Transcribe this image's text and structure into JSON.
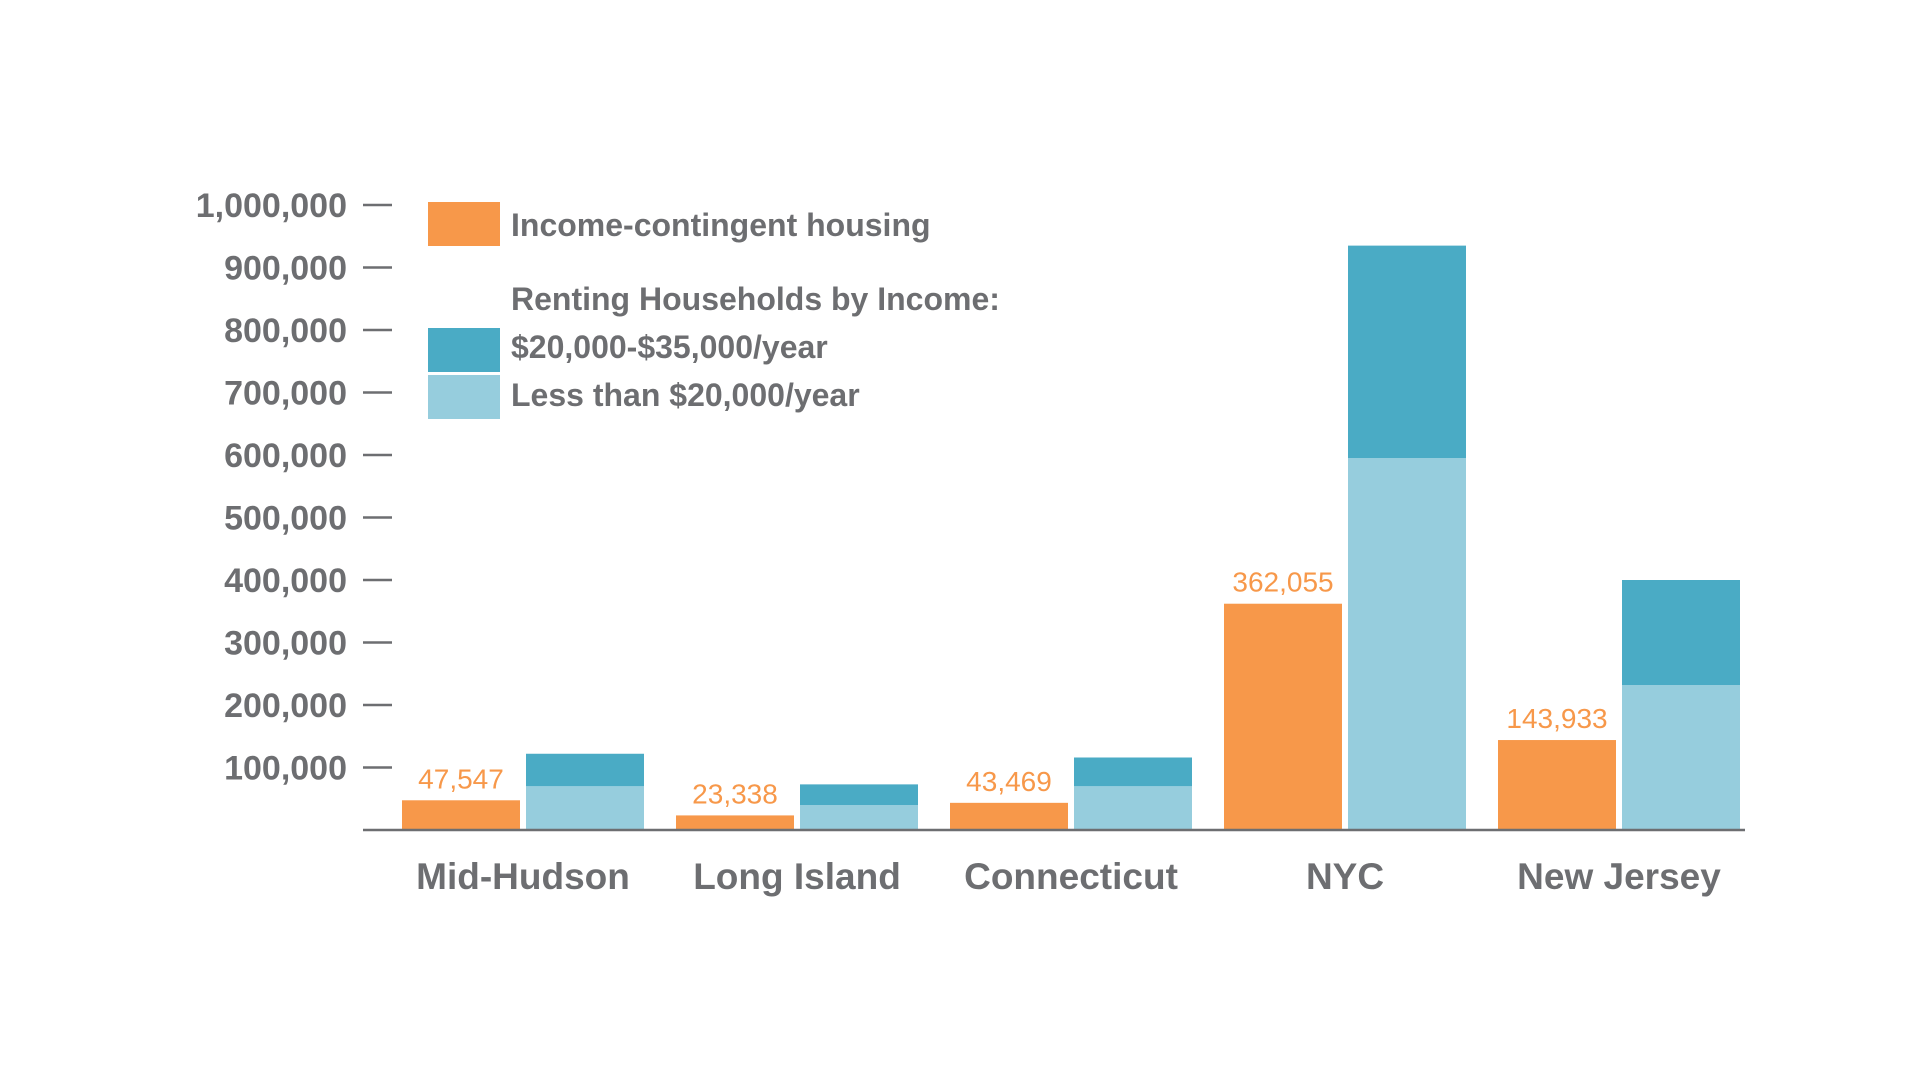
{
  "colors": {
    "orange": "#f7984a",
    "dark_teal": "#4aabc5",
    "light_teal": "#96cddd",
    "axis_text": "#6d6e71",
    "axis_line": "#6d6e71"
  },
  "legend": {
    "income_contingent": "Income-contingent housing",
    "renting_title": "Renting Households by Income:",
    "band_20_35": "$20,000-$35,000/year",
    "band_under_20": "Less than $20,000/year"
  },
  "chart_data": {
    "type": "bar",
    "categories": [
      "Mid-Hudson",
      "Long Island",
      "Connecticut",
      "NYC",
      "New Jersey"
    ],
    "ylim": [
      0,
      1000000
    ],
    "yticks": [
      "100,000",
      "200,000",
      "300,000",
      "400,000",
      "500,000",
      "600,000",
      "700,000",
      "800,000",
      "900,000",
      "1,000,000"
    ],
    "ytick_values": [
      100000,
      200000,
      300000,
      400000,
      500000,
      600000,
      700000,
      800000,
      900000,
      1000000
    ],
    "grid": false,
    "legend_position": "top-left",
    "series": [
      {
        "name": "Income-contingent housing",
        "values": [
          47547,
          23338,
          43469,
          362055,
          143933
        ],
        "labels": [
          "47,547",
          "23,338",
          "43,469",
          "362,055",
          "143,933"
        ]
      },
      {
        "name": "Less than $20,000/year",
        "stack": "renting",
        "values": [
          70000,
          40000,
          70000,
          595000,
          232000
        ]
      },
      {
        "name": "$20,000-$35,000/year",
        "stack": "renting",
        "values": [
          52000,
          33000,
          46000,
          340000,
          168000
        ]
      }
    ]
  }
}
